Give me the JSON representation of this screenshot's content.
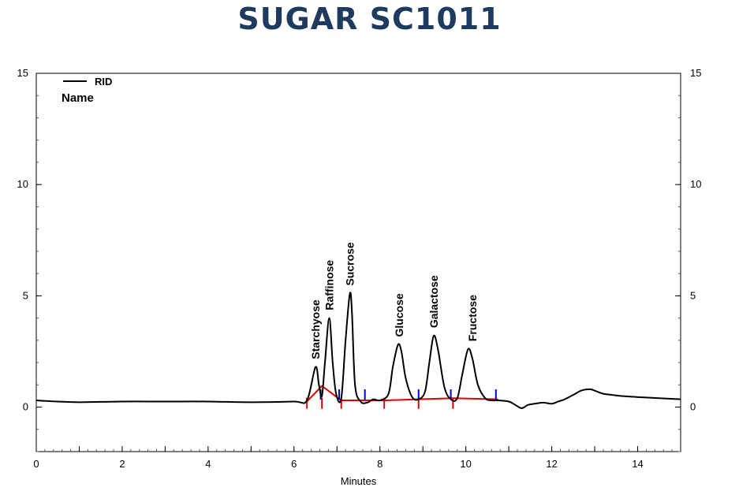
{
  "chart_data": {
    "type": "line",
    "title": "SUGAR SC1011",
    "xlabel": "Minutes",
    "ylabel": "",
    "xlim": [
      0,
      15
    ],
    "ylim": [
      -2,
      15
    ],
    "x_ticks": [
      "0",
      "2",
      "4",
      "6",
      "8",
      "10",
      "12",
      "14"
    ],
    "y_ticks": [
      "0",
      "5",
      "10",
      "15"
    ],
    "grid": false,
    "legend": {
      "position": "top-left",
      "header": "Name"
    },
    "series": [
      {
        "name": "RID",
        "color": "#000000",
        "x": [
          0,
          0.5,
          1,
          2,
          3,
          4,
          5,
          6,
          6.3,
          6.5,
          6.58,
          6.65,
          6.72,
          6.82,
          6.9,
          6.98,
          7.1,
          7.2,
          7.3,
          7.35,
          7.42,
          7.55,
          7.7,
          7.85,
          8.0,
          8.2,
          8.3,
          8.42,
          8.5,
          8.6,
          8.75,
          8.9,
          9.05,
          9.15,
          9.25,
          9.35,
          9.5,
          9.65,
          9.8,
          9.92,
          10.05,
          10.15,
          10.28,
          10.45,
          10.6,
          10.75,
          11.0,
          11.15,
          11.3,
          11.45,
          11.6,
          11.8,
          12.0,
          12.15,
          12.3,
          12.5,
          12.7,
          12.9,
          13.05,
          13.2,
          13.4,
          13.6,
          14.0,
          14.5,
          15.0
        ],
        "values": [
          0.3,
          0.25,
          0.22,
          0.25,
          0.25,
          0.25,
          0.22,
          0.25,
          0.3,
          1.8,
          1.0,
          0.5,
          2.0,
          4.0,
          2.0,
          0.6,
          0.4,
          3.0,
          5.1,
          4.2,
          1.0,
          0.25,
          0.2,
          0.35,
          0.3,
          0.6,
          1.8,
          2.8,
          2.5,
          1.3,
          0.45,
          0.35,
          0.7,
          2.0,
          3.2,
          2.6,
          0.9,
          0.35,
          0.4,
          1.5,
          2.6,
          2.2,
          1.0,
          0.4,
          0.3,
          0.3,
          0.25,
          0.1,
          -0.05,
          0.1,
          0.15,
          0.2,
          0.15,
          0.25,
          0.35,
          0.55,
          0.75,
          0.8,
          0.7,
          0.6,
          0.55,
          0.5,
          0.45,
          0.4,
          0.35
        ]
      }
    ],
    "peaks": [
      {
        "name": "Starchyose",
        "x": 6.5,
        "y": 1.8
      },
      {
        "name": "Raffinose",
        "x": 6.82,
        "y": 4.0
      },
      {
        "name": "Sucrose",
        "x": 7.3,
        "y": 5.1
      },
      {
        "name": "Glucose",
        "x": 8.45,
        "y": 2.8
      },
      {
        "name": "Galactose",
        "x": 9.25,
        "y": 3.2
      },
      {
        "name": "Fructose",
        "x": 10.15,
        "y": 2.6
      }
    ],
    "baseline": {
      "color": "#e00000",
      "points": [
        [
          6.3,
          0.25
        ],
        [
          6.65,
          0.95
        ],
        [
          7.1,
          0.3
        ],
        [
          8.1,
          0.3
        ],
        [
          8.9,
          0.35
        ],
        [
          9.7,
          0.4
        ],
        [
          10.75,
          0.35
        ]
      ],
      "markers_x": [
        6.3,
        6.65,
        7.1,
        8.1,
        8.9,
        9.7
      ]
    },
    "peak_markers": {
      "color": "#0000cc",
      "x": [
        6.62,
        7.05,
        7.65,
        8.9,
        9.65,
        10.7
      ]
    }
  }
}
